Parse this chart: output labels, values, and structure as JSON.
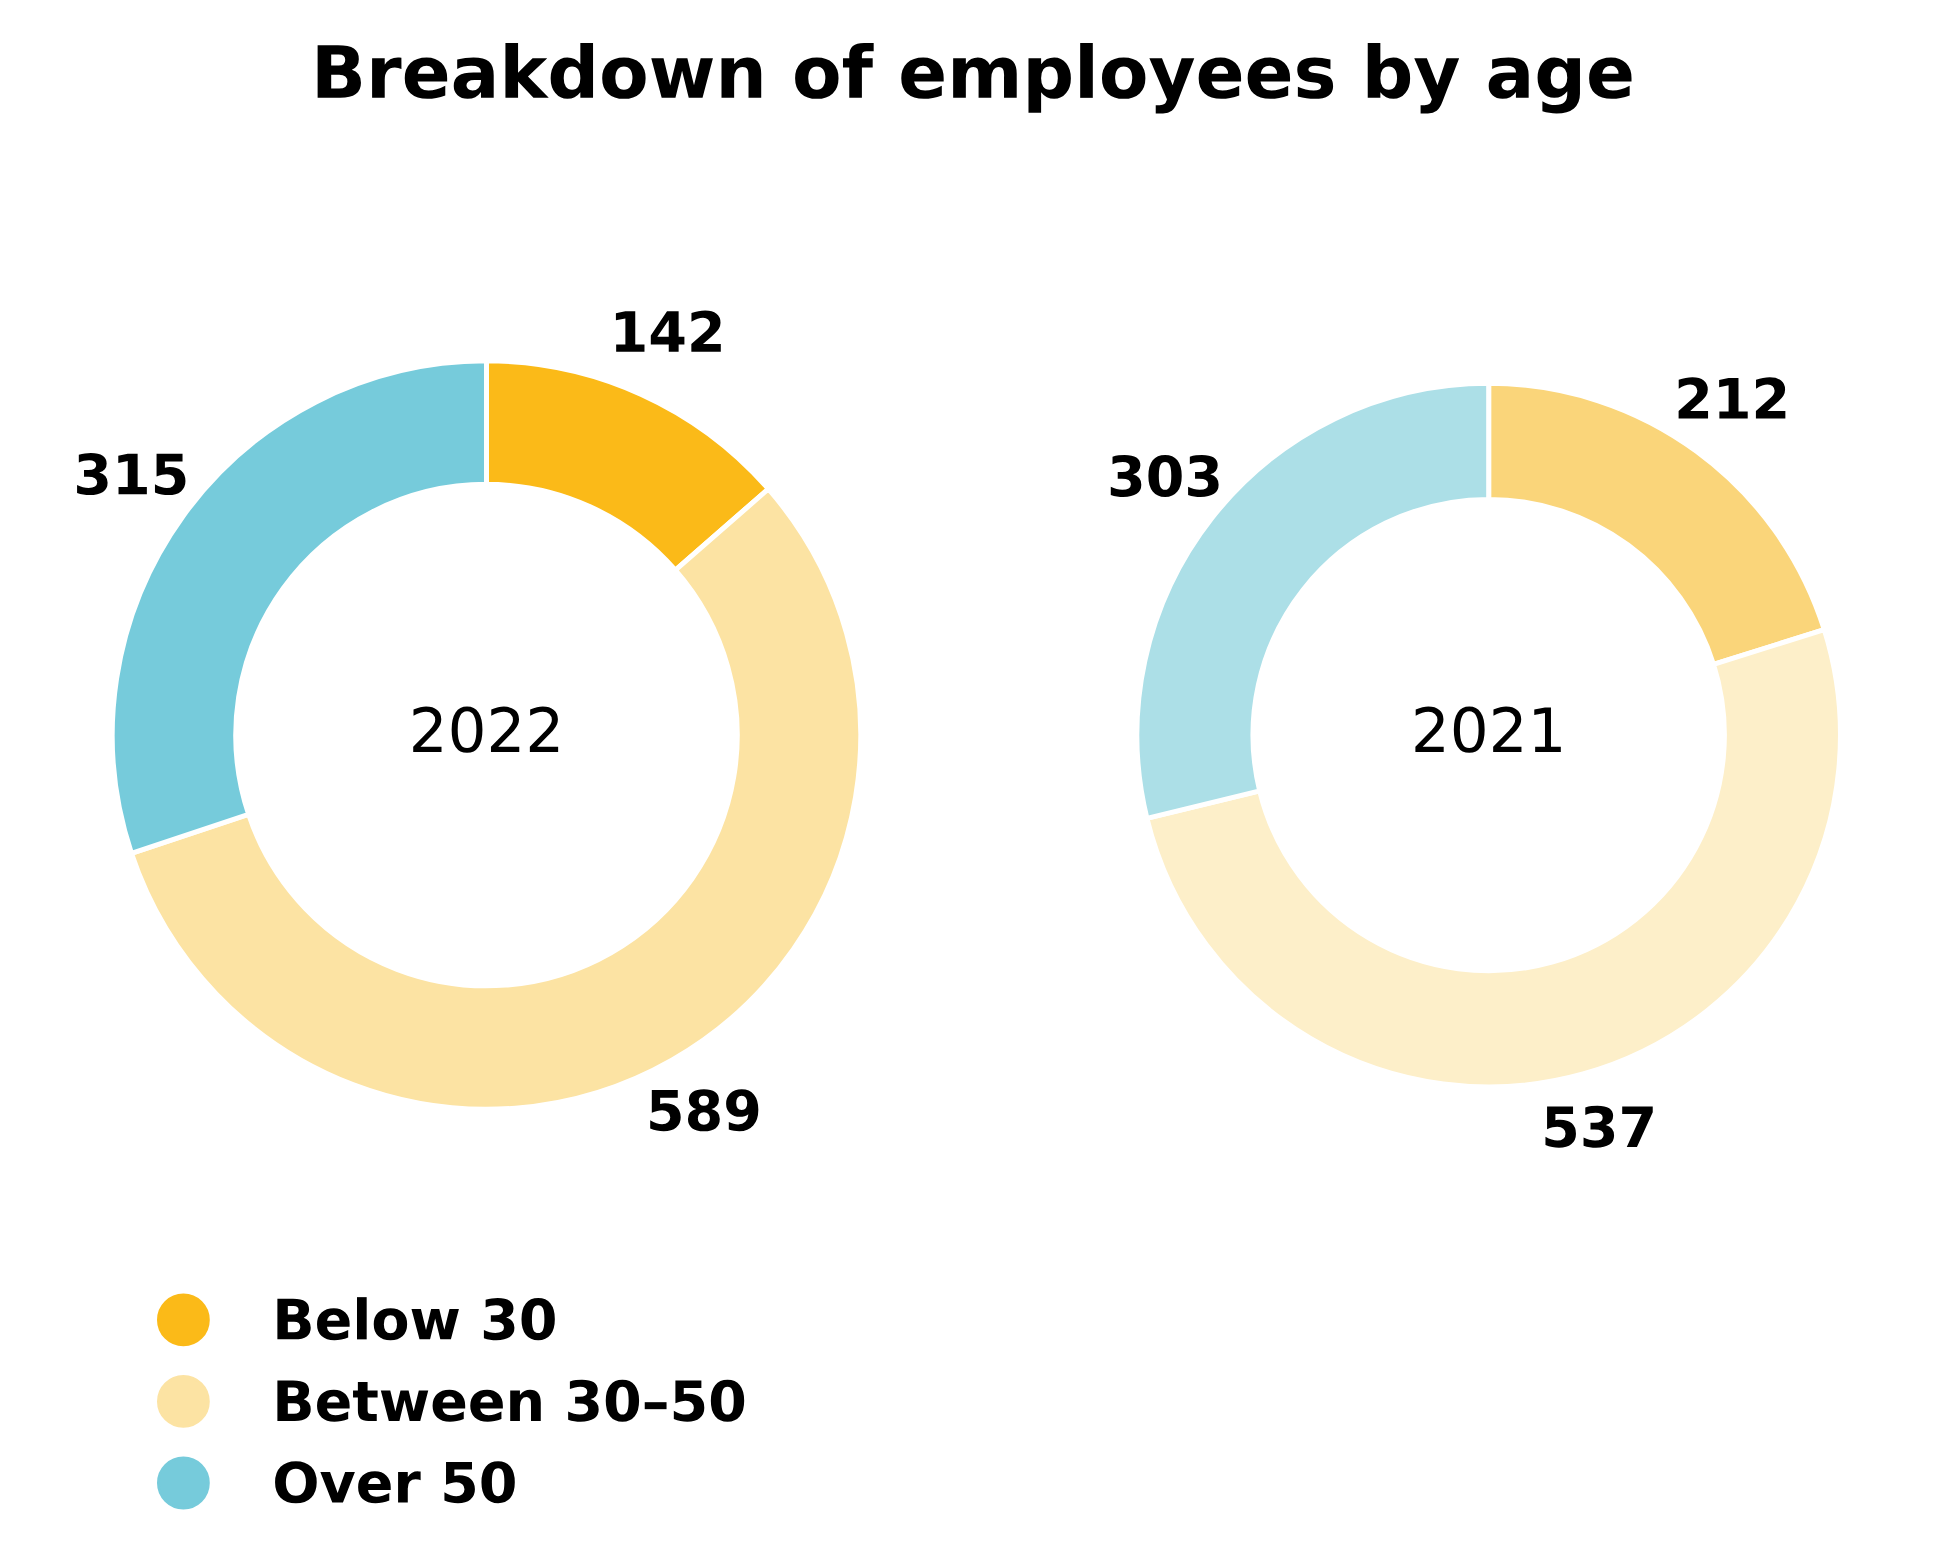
{
  "chart_data": [
    {
      "type": "donut",
      "title": "Breakdown of employees by age",
      "categories": [
        "Below 30",
        "Between 30–50",
        "Over 50"
      ],
      "values": [
        142,
        589,
        315
      ],
      "colors": [
        "#fbba18",
        "#fce3a3",
        "#76cbdb"
      ],
      "data_labels": true,
      "annotations": [
        "2022"
      ],
      "legend": "bottom left"
    },
    {
      "type": "donut",
      "categories": [
        null,
        null,
        null
      ],
      "values": [
        212,
        537,
        303
      ],
      "colors": [
        "#fad57a",
        "#fdefc9",
        "#acdfe7"
      ],
      "data_labels": true,
      "annotations": [
        "2021"
      ]
    }
  ]
}
